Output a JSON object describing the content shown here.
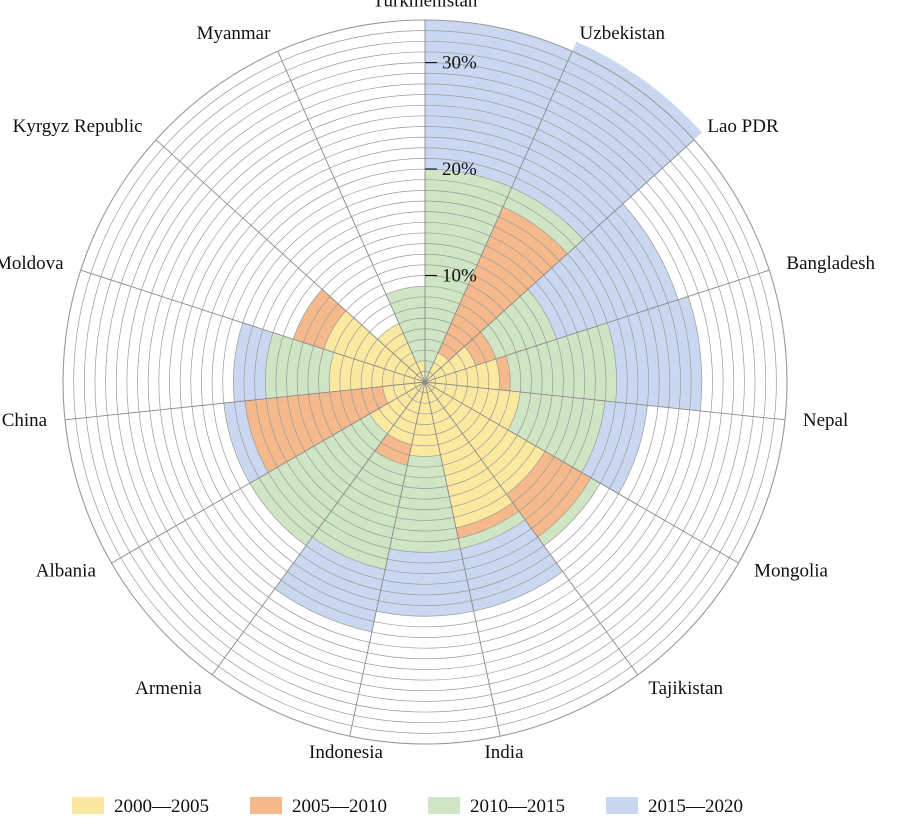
{
  "chart_data": {
    "type": "polar-stacked-bar",
    "title": "",
    "categories": [
      "Turkmenistan",
      "Uzbekistan",
      "Lao PDR",
      "Bangladesh",
      "Nepal",
      "Mongolia",
      "Tajikistan",
      "India",
      "Indonesia",
      "Armenia",
      "Albania",
      "China",
      "Moldova",
      "Kyrgyz Republic",
      "Myanmar"
    ],
    "series": [
      {
        "name": "2000—2005",
        "color": "#fce9a0",
        "values": [
          0,
          3,
          5,
          7,
          9,
          13,
          14,
          7,
          6,
          6,
          4,
          9,
          10,
          6,
          2
        ]
      },
      {
        "name": "2005—2010",
        "color": "#f5b98b",
        "values": [
          0,
          15,
          2,
          1,
          0,
          5,
          1,
          0,
          2,
          0,
          13,
          0,
          3,
          0,
          0
        ]
      },
      {
        "name": "2010—2015",
        "color": "#cfe5c3",
        "values": [
          20,
          2,
          6,
          10,
          8,
          1,
          1,
          9,
          10,
          13,
          0,
          6,
          0,
          0,
          7
        ]
      },
      {
        "name": "2015—2020",
        "color": "#c9d8f0",
        "values": [
          14,
          15,
          12,
          8,
          4,
          0,
          6,
          6,
          6,
          0,
          2,
          3,
          0,
          0,
          0
        ]
      }
    ],
    "radial_ticks": [
      {
        "value": 10,
        "label": "10%"
      },
      {
        "value": 20,
        "label": "20%"
      },
      {
        "value": 30,
        "label": "30%"
      }
    ],
    "rmax": 34,
    "ring_step": 1,
    "grid": true,
    "legend_position": "bottom"
  }
}
